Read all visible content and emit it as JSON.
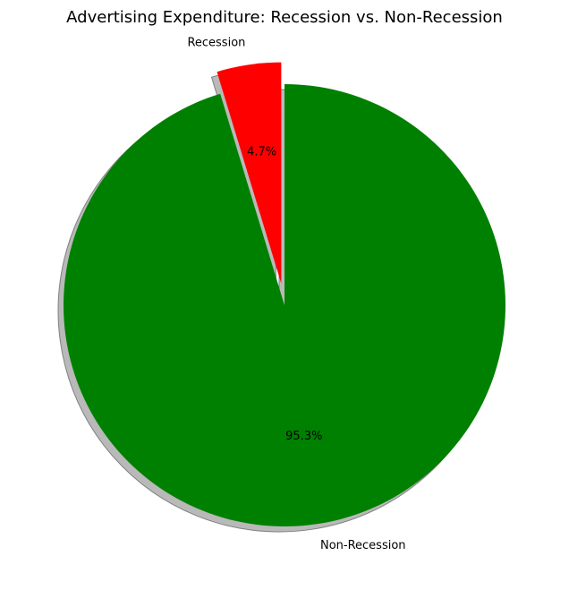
{
  "chart_data": {
    "type": "pie",
    "title": "Advertising Expenditure: Recession vs. Non-Recession",
    "slices": [
      {
        "label": "Recession",
        "value": 4.7,
        "pct_label": "4.7%",
        "color": "#ff0000",
        "exploded": true
      },
      {
        "label": "Non-Recession",
        "value": 95.3,
        "pct_label": "95.3%",
        "color": "#008000",
        "exploded": false
      }
    ],
    "start_angle_deg": 90,
    "direction": "counterclockwise",
    "shadow": true,
    "shadow_color": "#808080",
    "legend": "none"
  }
}
